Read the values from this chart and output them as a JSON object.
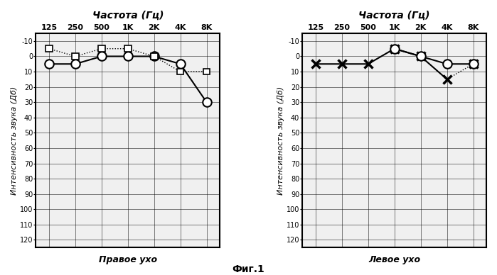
{
  "freq_labels": [
    "125",
    "250",
    "500",
    "1K",
    "2K",
    "4K",
    "8K"
  ],
  "freq_positions": [
    0,
    1,
    2,
    3,
    4,
    5,
    6
  ],
  "right_air": [
    5,
    5,
    0,
    0,
    0,
    5,
    30
  ],
  "right_bone": [
    -5,
    0,
    -5,
    -5,
    0,
    10,
    10
  ],
  "left_air": [
    null,
    null,
    null,
    -5,
    0,
    5,
    5
  ],
  "left_bone": [
    5,
    5,
    5,
    -5,
    0,
    15,
    5
  ],
  "title": "Частота (Гц)",
  "ylabel": "Интенсивность звука (Дб)",
  "right_label": "Правое ухо",
  "left_label": "Левое ухо",
  "fig_label": "Фиг.1",
  "yticks": [
    -10,
    0,
    10,
    20,
    30,
    40,
    50,
    60,
    70,
    80,
    90,
    100,
    110,
    120
  ],
  "bg_color": "#ffffff",
  "line_color": "#000000"
}
